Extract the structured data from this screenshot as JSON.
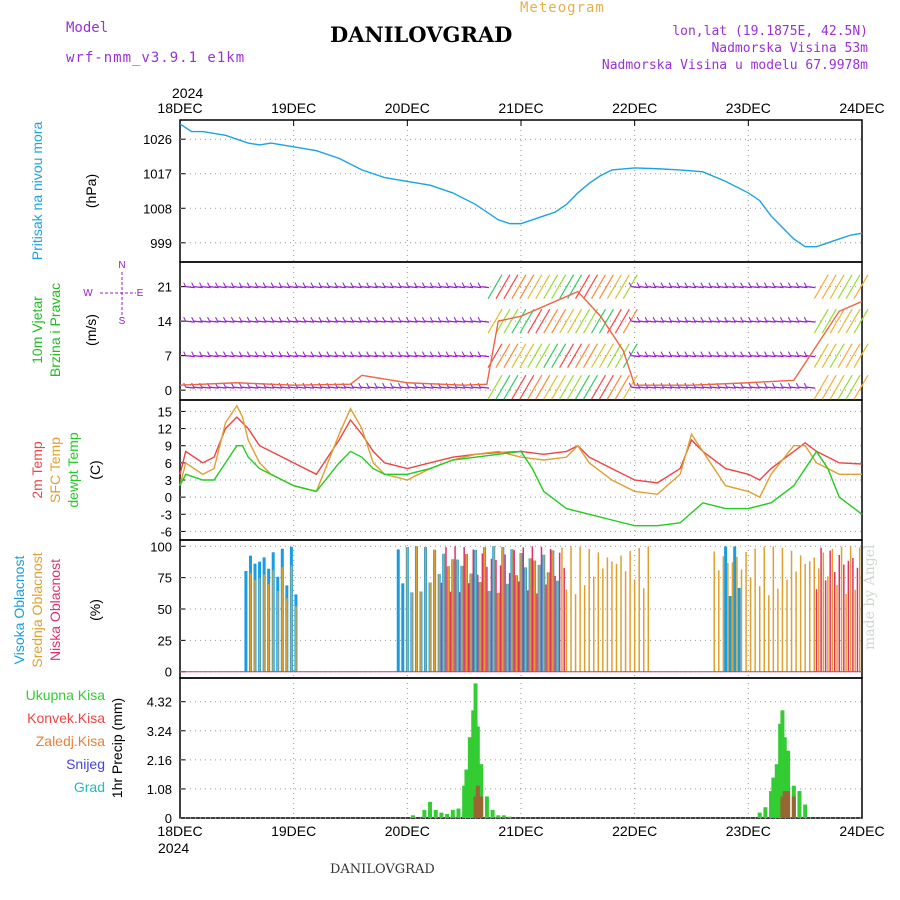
{
  "header": {
    "model_label": "Model",
    "model_run": "wrf-nmm_v3.9.1  e1km",
    "title": "DANILOVGRAD",
    "subtitle": "Meteogram",
    "coords": "lon,lat (19.1875E, 42.5N)",
    "elevation": "Nadmorska Visina 53m",
    "model_elevation": "Nadmorska Visina u modelu 67.9978m"
  },
  "footer": {
    "station": "DANILOVGRAD",
    "credit": "made by Angel"
  },
  "colors": {
    "pressure": "#1aa3e6",
    "wind_label": "#22bb22",
    "wind_barb": "#9a1ad6",
    "temp": "#ee4444",
    "sfc": "#e0a030",
    "dew": "#22cc22",
    "high": "#1a9de0",
    "mid": "#e0a030",
    "low": "#e0306a",
    "rain": "#33cc33",
    "conv": "#ee4444",
    "ice": "#e8803a",
    "snow": "#4444dd",
    "hail": "#22bbbb"
  },
  "chart_data": [
    {
      "type": "line",
      "name": "pressure",
      "x_axis": {
        "year": "2024",
        "ticks": [
          "18DEC",
          "19DEC",
          "20DEC",
          "21DEC",
          "22DEC",
          "23DEC",
          "24DEC"
        ],
        "range_days": [
          0,
          6
        ]
      },
      "ylabel": [
        "Pritisak na nivou mora",
        "(hPa)"
      ],
      "yticks": [
        999,
        1008,
        1017,
        1026
      ],
      "ylim": [
        994,
        1031
      ],
      "series": [
        {
          "x": [
            0,
            0.05,
            0.1,
            0.2,
            0.3,
            0.4,
            0.5,
            0.6,
            0.7,
            0.8,
            1.0,
            1.2,
            1.4,
            1.6,
            1.8,
            2.0,
            2.2,
            2.4,
            2.6,
            2.8,
            2.9,
            3.0,
            3.1,
            3.2,
            3.3,
            3.4,
            3.5,
            3.6,
            3.7,
            3.8,
            4.0,
            4.2,
            4.4,
            4.6,
            4.8,
            5.0,
            5.1,
            5.2,
            5.3,
            5.4,
            5.5,
            5.6,
            5.7,
            5.8,
            5.9,
            6.0
          ],
          "y": [
            1030,
            1029,
            1028,
            1028,
            1027.5,
            1027,
            1026,
            1025,
            1024.5,
            1025,
            1024,
            1023,
            1021,
            1018,
            1016,
            1015,
            1014,
            1012,
            1009,
            1005,
            1004,
            1004,
            1005,
            1006,
            1007,
            1009,
            1012,
            1014.5,
            1016.5,
            1018,
            1018.5,
            1018.3,
            1018,
            1017.5,
            1015,
            1012,
            1010,
            1006,
            1003,
            1000,
            998,
            998,
            999,
            1000,
            1001,
            1001.5
          ]
        }
      ]
    },
    {
      "type": "line",
      "name": "wind",
      "ylabel": [
        "10m Vjetar",
        "Brzina i Pravac",
        "(m/s)"
      ],
      "legend_dirs": [
        "N",
        "E",
        "S",
        "W"
      ],
      "yticks": [
        0,
        7,
        14,
        21
      ],
      "ylim": [
        -2,
        26
      ],
      "series": [
        {
          "name": "wind_speed",
          "x": [
            0,
            0.5,
            1,
            1.5,
            1.6,
            2,
            2.5,
            2.7,
            2.8,
            3,
            3.3,
            3.5,
            3.7,
            3.9,
            4,
            4.5,
            5,
            5.4,
            5.6,
            5.8,
            6
          ],
          "y": [
            1,
            1.5,
            1,
            1.2,
            3,
            1.5,
            1,
            1.2,
            14,
            15,
            18,
            20,
            15,
            8,
            1,
            1,
            1.5,
            2,
            9,
            16,
            18
          ]
        }
      ]
    },
    {
      "type": "line",
      "name": "temperature",
      "ylabel": [
        "2m Temp",
        "SFC Temp",
        "dewpt Temp",
        "(C)"
      ],
      "yticks": [
        -6,
        -3,
        0,
        3,
        6,
        9,
        12,
        15
      ],
      "ylim": [
        -7.5,
        17
      ],
      "series": [
        {
          "name": "2m Temp",
          "x": [
            0,
            0.05,
            0.2,
            0.3,
            0.4,
            0.5,
            0.55,
            0.6,
            0.7,
            0.8,
            1.0,
            1.2,
            1.4,
            1.5,
            1.6,
            1.7,
            1.8,
            2.0,
            2.2,
            2.4,
            2.6,
            2.8,
            3.0,
            3.2,
            3.4,
            3.5,
            3.6,
            3.8,
            4.0,
            4.2,
            4.4,
            4.5,
            4.6,
            4.8,
            5.0,
            5.1,
            5.2,
            5.4,
            5.5,
            5.6,
            5.8,
            6.0
          ],
          "y": [
            4,
            8,
            6,
            7,
            12,
            14,
            13,
            12,
            9,
            8,
            6,
            4,
            10,
            13.5,
            11,
            8,
            6,
            5,
            6,
            7,
            7.5,
            7.8,
            8,
            7.5,
            8,
            9,
            7,
            5,
            3,
            2.5,
            5,
            10,
            8,
            5,
            4,
            3,
            5,
            8,
            9.5,
            8,
            6,
            5.8
          ]
        },
        {
          "name": "SFC Temp",
          "x": [
            0,
            0.05,
            0.2,
            0.3,
            0.4,
            0.5,
            0.55,
            0.6,
            0.7,
            0.8,
            1.0,
            1.2,
            1.4,
            1.5,
            1.6,
            1.7,
            1.8,
            2.0,
            2.2,
            2.4,
            2.6,
            2.8,
            3.0,
            3.2,
            3.4,
            3.5,
            3.6,
            3.8,
            4.0,
            4.2,
            4.4,
            4.5,
            4.6,
            4.8,
            5.0,
            5.1,
            5.2,
            5.4,
            5.5,
            5.6,
            5.8,
            6.0
          ],
          "y": [
            2,
            6,
            4,
            5,
            13,
            16,
            14,
            10,
            6,
            4,
            2,
            1,
            11,
            15.5,
            12,
            6,
            4,
            3,
            5,
            6.5,
            7.5,
            8,
            7,
            6.5,
            7,
            9,
            6,
            3,
            1,
            0.5,
            4,
            11,
            8,
            2,
            1,
            0,
            4,
            9,
            9,
            6,
            4,
            4
          ]
        },
        {
          "name": "dewpt Temp",
          "x": [
            0,
            0.05,
            0.2,
            0.3,
            0.4,
            0.5,
            0.55,
            0.6,
            0.7,
            0.8,
            1.0,
            1.2,
            1.4,
            1.5,
            1.6,
            1.7,
            1.8,
            2.0,
            2.2,
            2.4,
            2.6,
            2.8,
            3.0,
            3.1,
            3.2,
            3.4,
            3.6,
            3.8,
            4.0,
            4.2,
            4.4,
            4.6,
            4.8,
            5.0,
            5.2,
            5.4,
            5.6,
            5.7,
            5.8,
            6.0
          ],
          "y": [
            2,
            4,
            3,
            3,
            6,
            9,
            9,
            7,
            5,
            4,
            2,
            1,
            6,
            8,
            7,
            5,
            4,
            4,
            5,
            6.5,
            7,
            7.5,
            8,
            5,
            1,
            -2,
            -3,
            -4,
            -5,
            -5,
            -4.5,
            -1,
            -2,
            -2,
            -1,
            2,
            8,
            5,
            0,
            -3
          ]
        }
      ]
    },
    {
      "type": "bar",
      "name": "cloud_cover",
      "ylabel": [
        "Visoka Oblacnost",
        "Srednja Oblacnost",
        "Niska Oblacnost",
        "(%)"
      ],
      "yticks": [
        0,
        25,
        50,
        75,
        100
      ],
      "ylim": [
        -5,
        105
      ],
      "segments": [
        {
          "name": "Visoka Oblacnost",
          "from": 0.58,
          "to": 1.05,
          "value": 100
        },
        {
          "name": "Srednja Oblacnost",
          "from": 0.62,
          "to": 1.05,
          "value": 85
        },
        {
          "name": "Visoka Oblacnost",
          "from": 1.92,
          "to": 3.35,
          "value": 100
        },
        {
          "name": "Srednja Oblacnost",
          "from": 2.0,
          "to": 4.15,
          "value": 100
        },
        {
          "name": "Niska Oblacnost",
          "from": 2.3,
          "to": 3.4,
          "value": 100
        },
        {
          "name": "Visoka Oblacnost",
          "from": 4.8,
          "to": 4.95,
          "value": 100
        },
        {
          "name": "Srednja Oblacnost",
          "from": 4.7,
          "to": 6.0,
          "value": 100
        },
        {
          "name": "Niska Oblacnost",
          "from": 5.6,
          "to": 6.0,
          "value": 100
        }
      ]
    },
    {
      "type": "bar",
      "name": "precipitation",
      "ylabel": [
        "1hr Precip (mm)"
      ],
      "legend": [
        "Ukupna Kisa",
        "Konvek.Kisa",
        "Zaledj.Kisa",
        "Snijeg",
        "Grad"
      ],
      "yticks": [
        0,
        1.08,
        2.16,
        3.24,
        4.32
      ],
      "ylim": [
        0,
        5.2
      ],
      "series": [
        {
          "name": "Ukupna Kisa",
          "x": [
            2.05,
            2.15,
            2.2,
            2.25,
            2.3,
            2.35,
            2.4,
            2.45,
            2.5,
            2.52,
            2.55,
            2.58,
            2.6,
            2.62,
            2.65,
            2.7,
            2.75,
            2.8,
            2.85,
            2.9,
            5.1,
            5.15,
            5.2,
            5.22,
            5.25,
            5.28,
            5.3,
            5.32,
            5.35,
            5.4,
            5.45,
            5.5
          ],
          "y": [
            0.1,
            0.3,
            0.6,
            0.3,
            0.2,
            0.15,
            0.3,
            0.35,
            1.2,
            1.8,
            3.0,
            4.0,
            5.0,
            3.4,
            2.0,
            0.8,
            0.3,
            0.1,
            0.1,
            0.05,
            0.2,
            0.4,
            1.0,
            1.5,
            2.0,
            3.5,
            4.0,
            3.0,
            2.5,
            1.2,
            1.0,
            0.5
          ]
        },
        {
          "name": "Konvek.Kisa",
          "x": [
            2.6,
            2.62,
            2.65,
            5.3,
            5.32,
            5.35,
            5.4
          ],
          "y": [
            0.8,
            1.2,
            0.8,
            0.8,
            1.0,
            1.0,
            0.8
          ]
        }
      ]
    }
  ]
}
